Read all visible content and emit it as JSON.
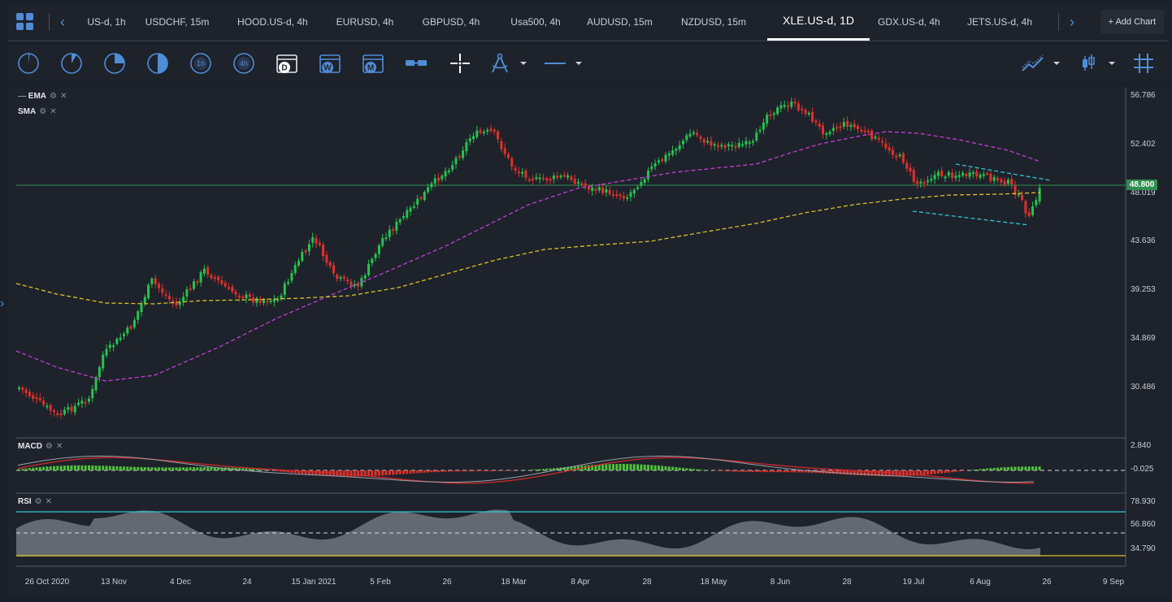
{
  "tabs": [
    {
      "label": "US-d, 1h"
    },
    {
      "label": "USDCHF, 15m"
    },
    {
      "label": "HOOD.US-d, 4h"
    },
    {
      "label": "EURUSD, 4h"
    },
    {
      "label": "GBPUSD, 4h"
    },
    {
      "label": "Usa500, 4h"
    },
    {
      "label": "AUDUSD, 15m"
    },
    {
      "label": "NZDUSD, 15m"
    },
    {
      "label": "XLE.US-d, 1D"
    },
    {
      "label": "GDX.US-d, 4h"
    },
    {
      "label": "JETS.US-d, 4h"
    }
  ],
  "add_chart_label": "Add Chart",
  "toolbar": {
    "tools": [
      "1m",
      "5m",
      "15m",
      "30m",
      "1h",
      "4h",
      "D",
      "W",
      "M",
      "ruler",
      "crosshair",
      "compass",
      "line",
      "indicators",
      "candles",
      "grid"
    ],
    "timeframe_labels": {
      "h1": "1h",
      "h4": "4h",
      "d": "D",
      "w": "W",
      "m": "M"
    }
  },
  "indicators": {
    "ema": "EMA",
    "sma": "SMA",
    "macd": "MACD",
    "rsi": "RSI"
  },
  "price_axis": [
    "56.786",
    "52.402",
    "48.019",
    "43.636",
    "39.253",
    "34.869",
    "30.486"
  ],
  "current_price": "48.800",
  "macd_axis": [
    "2.840",
    "-0.025"
  ],
  "rsi_axis": [
    "78.930",
    "56.860",
    "34.790"
  ],
  "time_axis": [
    "26 Oct 2020",
    "13 Nov",
    "4 Dec",
    "24",
    "15 Jan 2021",
    "5 Feb",
    "26",
    "18 Mar",
    "8 Apr",
    "28",
    "18 May",
    "8 Jun",
    "28",
    "19 Jul",
    "6 Aug",
    "26",
    "9 Sep"
  ],
  "colors": {
    "accent": "#4f8dd6",
    "up": "#27c24c",
    "down": "#e0302a",
    "ema": "#c23fd2",
    "sma": "#d9c22a",
    "channel": "#33c6d6",
    "price_line": "#2f8f4f"
  }
}
